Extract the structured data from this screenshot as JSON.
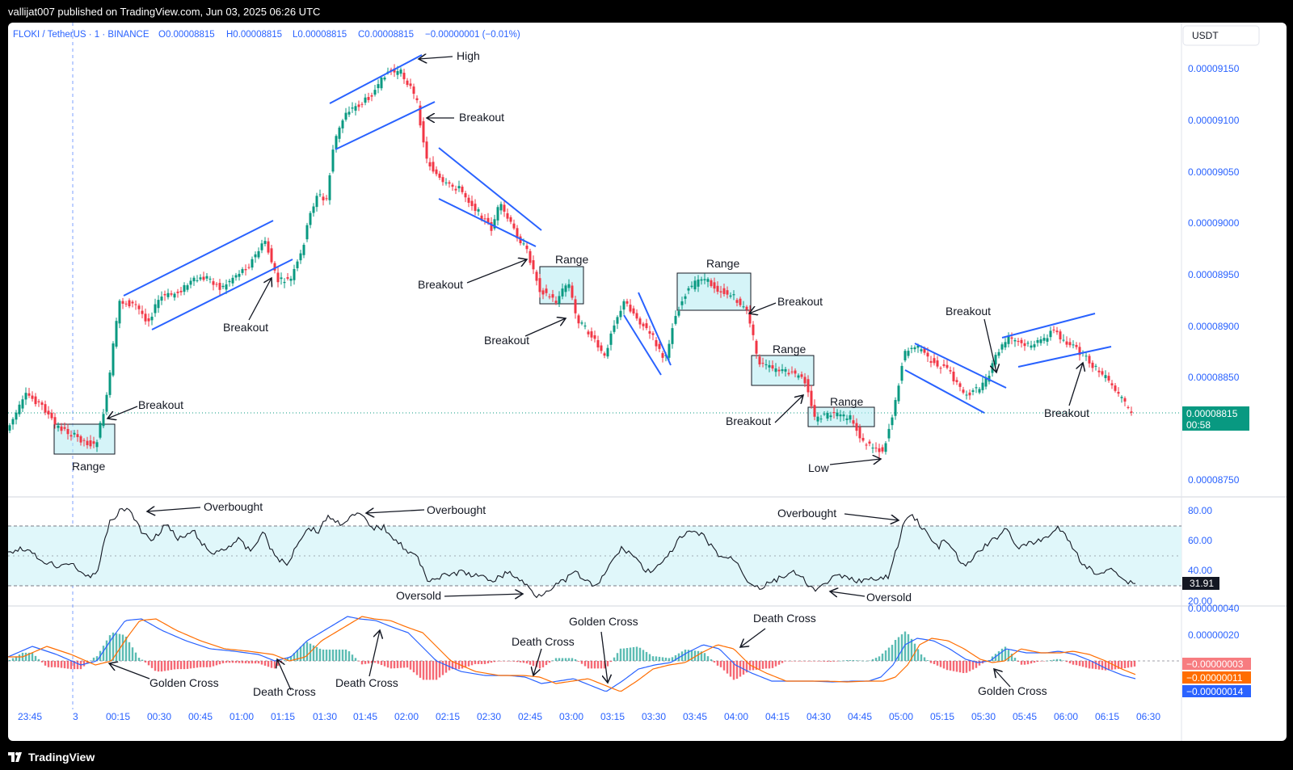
{
  "header": {
    "published": "vallijat007 published on TradingView.com, Jun 03, 2025 06:26 UTC"
  },
  "footer": {
    "brand": "TradingView"
  },
  "chart": {
    "symbol": "FLOKI / TetherUS · 1 · BINANCE",
    "o": "O0.00008815",
    "h": "H0.00008815",
    "l": "L0.00008815",
    "c": "C0.00008815",
    "change": "−0.00000001 (−0.01%)",
    "currency": "USDT",
    "price_ticks": [
      "0.00009150",
      "0.00009100",
      "0.00009050",
      "0.00009000",
      "0.00008950",
      "0.00008900",
      "0.00008850",
      "0.00008750"
    ],
    "last_price": "0.00008815",
    "countdown": "00:58",
    "rsi_ticks": [
      "80.00",
      "60.00",
      "40.00",
      "20.00"
    ],
    "rsi_value": "31.91",
    "macd_ticks": [
      "0.00000040",
      "0.00000020"
    ],
    "macd_values": [
      "−0.00000003",
      "−0.00000011",
      "−0.00000014"
    ],
    "time_ticks": [
      "23:45",
      "3",
      "00:15",
      "00:30",
      "00:45",
      "01:00",
      "01:15",
      "01:30",
      "01:45",
      "02:00",
      "02:15",
      "02:30",
      "02:45",
      "03:00",
      "03:15",
      "03:30",
      "03:45",
      "04:00",
      "04:15",
      "04:30",
      "04:45",
      "05:00",
      "05:15",
      "05:30",
      "05:45",
      "06:00",
      "06:15",
      "06:30"
    ],
    "colors": {
      "up": "#089981",
      "down": "#f23645",
      "trend": "#2962ff",
      "range_fill": "#b2ebf2",
      "rsi_band": "#e0f7fa",
      "macd_line": "#2962ff",
      "signal_line": "#ff6d00"
    }
  },
  "annotations": {
    "high": "High",
    "low": "Low",
    "breakout": "Breakout",
    "range": "Range",
    "overbought": "Overbought",
    "oversold": "Oversold",
    "golden_cross": "Golden Cross",
    "death_cross": "Death Cross"
  }
}
